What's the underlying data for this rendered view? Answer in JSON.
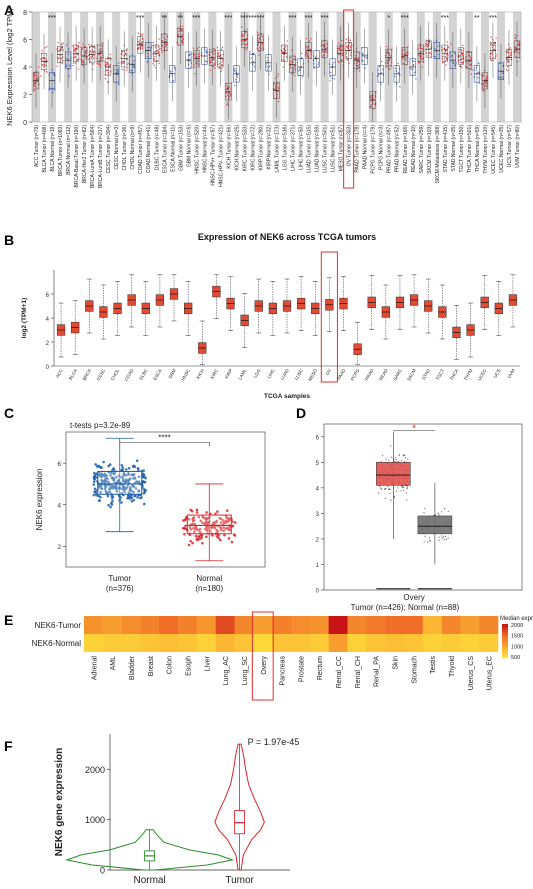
{
  "panels": {
    "A": {
      "label": "A",
      "ylabel": "NEK6 Expression Level (log2 TPM)",
      "yticks": [
        "0",
        "2",
        "4",
        "6",
        "8"
      ],
      "ylim": [
        0,
        8
      ],
      "categories": [
        "ACC.Tumor (n=79)",
        "BLCA.Tumor (n=408)",
        "BLCA.Normal (n=19)",
        "BRCA.Tumor (n=1093)",
        "BRCA.Normal (n=112)",
        "BRCA-Basal.Tumor (n=190)",
        "BRCA-Her2.Tumor (n=82)",
        "BRCA-LumA.Tumor (n=564)",
        "BRCA-LumB.Tumor (n=217)",
        "CESC.Tumor (n=304)",
        "CESC.Normal (n=3)",
        "CHOL.Tumor (n=36)",
        "CHOL.Normal (n=9)",
        "COAD.Tumor (n=457)",
        "COAD.Normal (n=41)",
        "DLBC.Tumor (n=48)",
        "ESCA.Tumor (n=184)",
        "ESCA.Normal (n=11)",
        "GBM.Tumor (n=153)",
        "GBM.Normal (n=5)",
        "HNSC.Tumor (n=520)",
        "HNSC.Normal (n=44)",
        "HNSC-HPV+.Tumor (n=97)",
        "HNSC-HPV-.Tumor (n=421)",
        "KICH.Tumor (n=66)",
        "KICH.Normal (n=25)",
        "KIRC.Tumor (n=533)",
        "KIRC.Normal (n=72)",
        "KIRP.Tumor (n=290)",
        "KIRP.Normal (n=32)",
        "LAML.Tumor (n=173)",
        "LGG.Tumor (n=516)",
        "LIHC.Tumor (n=371)",
        "LIHC.Normal (n=50)",
        "LUAD.Tumor (n=515)",
        "LUAD.Normal (n=59)",
        "LUSC.Tumor (n=501)",
        "LUSC.Normal (n=51)",
        "MESO.Tumor (n=87)",
        "OV.Tumor (n=303)",
        "PAAD.Tumor (n=178)",
        "PAAD.Normal (n=4)",
        "PCPG.Tumor (n=179)",
        "PCPG.Normal (n=3)",
        "PRAD.Tumor (n=497)",
        "PRAD.Normal (n=52)",
        "READ.Tumor (n=166)",
        "READ.Normal (n=10)",
        "SARC.Tumor (n=259)",
        "SKCM.Tumor (n=103)",
        "SKCM.Metastasis (n=368)",
        "STAD.Tumor (n=415)",
        "STAD.Normal (n=35)",
        "TGCT.Tumor (n=150)",
        "THCA.Tumor (n=501)",
        "THCA.Normal (n=59)",
        "THYM.Tumor (n=120)",
        "UCEC.Tumor (n=545)",
        "UCEC.Normal (n=35)",
        "UCS.Tumor (n=57)",
        "UVM.Tumor (n=80)"
      ],
      "medians": [
        3.0,
        4.4,
        3.0,
        4.9,
        4.5,
        5.0,
        4.8,
        4.9,
        5.0,
        4.0,
        3.5,
        4.6,
        4.2,
        5.6,
        5.2,
        5.0,
        5.8,
        3.5,
        6.2,
        4.5,
        4.6,
        4.8,
        4.7,
        4.6,
        2.2,
        3.5,
        6.0,
        4.3,
        5.8,
        4.3,
        2.3,
        5.0,
        4.2,
        4.0,
        5.2,
        4.6,
        5.3,
        4.0,
        5.0,
        5.2,
        4.5,
        4.8,
        1.6,
        3.5,
        4.7,
        3.5,
        4.8,
        4.0,
        5.0,
        5.3,
        5.2,
        5.0,
        4.5,
        4.8,
        4.5,
        3.5,
        3.0,
        5.2,
        3.7,
        4.7,
        5.3
      ],
      "significance": [
        "",
        "",
        "***",
        "",
        "",
        "",
        "",
        "",
        "",
        "",
        "",
        "",
        "",
        "***",
        "",
        "",
        "**",
        "",
        "**",
        "",
        "***",
        "",
        "",
        "",
        "***",
        "",
        "***",
        "***",
        "***",
        "",
        "",
        "",
        "***",
        "",
        "***",
        "",
        "***",
        "",
        "",
        "",
        "",
        "",
        "",
        "",
        "*",
        "",
        "***",
        "",
        "",
        "",
        "",
        "***",
        "",
        "",
        "",
        "**",
        "",
        "***",
        "",
        ""
      ],
      "highlight": "OV.Tumor (n=303)"
    },
    "B": {
      "label": "B",
      "title": "Expression of NEK6 across TCGA tumors",
      "ylabel": "log2 (TPM+1)",
      "xlabel": "TCGA samples",
      "yticks": [
        "0",
        "2",
        "4",
        "6"
      ],
      "ylim": [
        0,
        8
      ],
      "categories": [
        "ACC",
        "BLCA",
        "BRCA",
        "CESC",
        "CHOL",
        "COAD",
        "DLBC",
        "ESCA",
        "GBM",
        "HNSC",
        "KICH",
        "KIRC",
        "KIRP",
        "LAML",
        "LGG",
        "LIHC",
        "LUAD",
        "LUSC",
        "MESO",
        "OV",
        "PAAD",
        "PCPG",
        "PRAD",
        "READ",
        "SARC",
        "SKCM",
        "STAD",
        "TGCT",
        "THCA",
        "THYM",
        "UCEC",
        "UCS",
        "UVM"
      ],
      "medians": [
        3.0,
        3.2,
        5.0,
        4.5,
        4.8,
        5.5,
        4.8,
        5.5,
        6.0,
        4.8,
        1.5,
        6.2,
        5.2,
        3.8,
        5.0,
        4.8,
        5.0,
        5.2,
        4.8,
        5.1,
        5.2,
        1.4,
        5.3,
        4.5,
        5.3,
        5.5,
        5.0,
        4.5,
        2.8,
        3.0,
        5.3,
        4.8,
        5.5
      ],
      "highlight": "OV"
    },
    "C": {
      "label": "C",
      "annotation": "t-tests p=3.2e-89",
      "sig": "****",
      "ylabel": "NEK6 expression",
      "yticks": [
        "2",
        "4",
        "6"
      ],
      "ylim": [
        1,
        7.5
      ],
      "groups": [
        {
          "name": "Tumor",
          "n": "(n=376)",
          "median": 5.0,
          "q1": 4.5,
          "q3": 5.6,
          "min": 2.7,
          "max": 7.2,
          "color": "#1f5fa8"
        },
        {
          "name": "Normal",
          "n": "(n=180)",
          "median": 3.0,
          "q1": 2.6,
          "q3": 3.5,
          "min": 1.3,
          "max": 5.0,
          "color": "#d7262b"
        }
      ]
    },
    "D": {
      "label": "D",
      "sig": "*",
      "yticks": [
        "0",
        "1",
        "2",
        "3",
        "4",
        "5",
        "6"
      ],
      "ylim": [
        0,
        6.5
      ],
      "category": "Overy",
      "caption": "Tumor (n=426); Normal (n=88)",
      "groups": [
        {
          "name": "Tumor",
          "median": 4.5,
          "q1": 4.1,
          "q3": 5.0,
          "min": 2.0,
          "max": 6.2,
          "color": "#e0534f"
        },
        {
          "name": "Normal",
          "median": 2.5,
          "q1": 2.2,
          "q3": 2.9,
          "min": 1.0,
          "max": 4.2,
          "color": "#6e6e6e"
        }
      ]
    },
    "E": {
      "label": "E",
      "rows": [
        "NEK6-Tumor",
        "NEK6-Normal"
      ],
      "columns": [
        "Adrenal",
        "AML",
        "Bladder",
        "Breast",
        "Colon",
        "Esoph",
        "Liver",
        "Lung_AC",
        "Lung_SC",
        "Overy",
        "Pancreas",
        "Prostate",
        "Rectum",
        "Renal_CC",
        "Renal_CH",
        "Renal_PA",
        "Skin",
        "Stomach",
        "Testis",
        "Thyoid",
        "Uterus_CS",
        "Uterus_EC"
      ],
      "tumor_values": [
        1200,
        1100,
        1250,
        1350,
        1500,
        1350,
        1150,
        1700,
        1300,
        1100,
        1350,
        1250,
        1200,
        2000,
        1300,
        1400,
        1500,
        1500,
        900,
        1300,
        1100,
        1300
      ],
      "normal_values": [
        700,
        750,
        750,
        800,
        850,
        800,
        700,
        900,
        800,
        650,
        800,
        800,
        750,
        1100,
        700,
        800,
        850,
        800,
        700,
        750,
        700,
        750
      ],
      "legend_title": "Median expression",
      "legend_ticks": [
        "2000",
        "1500",
        "1000",
        "500"
      ],
      "highlight": "Overy"
    },
    "F": {
      "label": "F",
      "ylabel": "NEK6 gene expression",
      "annotation": "P = 1.97e-45",
      "yticks": [
        "0",
        "1000",
        "2000"
      ],
      "ylim": [
        0,
        2700
      ],
      "groups": [
        {
          "name": "Normal",
          "median": 280,
          "q1": 180,
          "q3": 380,
          "min": 0,
          "max": 800,
          "color": "#2e8b2e"
        },
        {
          "name": "Tumor",
          "median": 940,
          "q1": 720,
          "q3": 1180,
          "min": 0,
          "max": 2500,
          "color": "#d7262b"
        }
      ]
    }
  },
  "colors": {
    "tumor_red": "#d7262b",
    "normal_blue": "#2b55c9",
    "box_red": "#e34a33",
    "grey_band": "#d3d3d3"
  }
}
